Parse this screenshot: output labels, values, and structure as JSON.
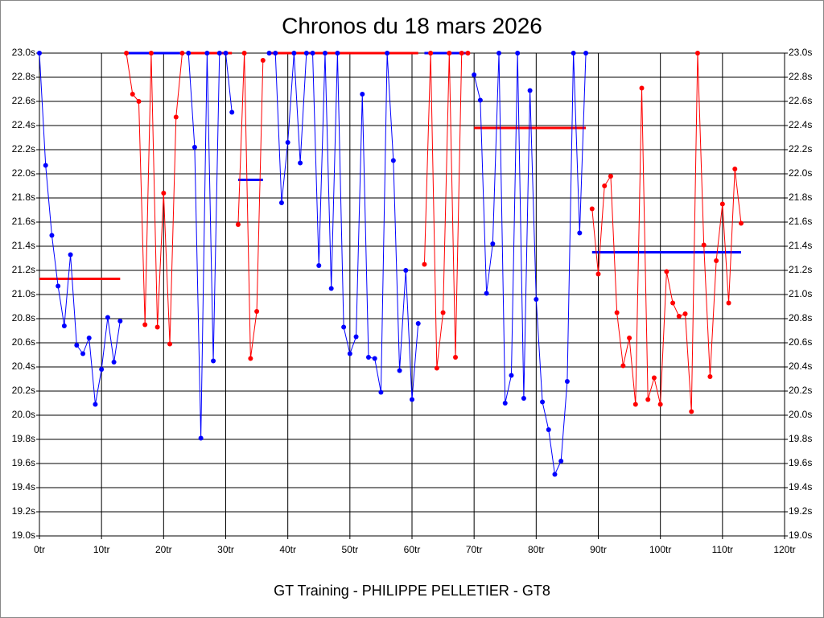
{
  "chart_data": {
    "type": "line",
    "title": "Chronos du 18 mars 2026",
    "footer": "GT Training - PHILIPPE PELLETIER - GT8",
    "xlim": [
      0,
      120
    ],
    "ylim": [
      19,
      23
    ],
    "xticks": [
      {
        "value": 0,
        "label": "0tr"
      },
      {
        "value": 10,
        "label": "10tr"
      },
      {
        "value": 20,
        "label": "20tr"
      },
      {
        "value": 30,
        "label": "30tr"
      },
      {
        "value": 40,
        "label": "40tr"
      },
      {
        "value": 50,
        "label": "50tr"
      },
      {
        "value": 60,
        "label": "60tr"
      },
      {
        "value": 70,
        "label": "70tr"
      },
      {
        "value": 80,
        "label": "80tr"
      },
      {
        "value": 90,
        "label": "90tr"
      },
      {
        "value": 100,
        "label": "100tr"
      },
      {
        "value": 110,
        "label": "110tr"
      },
      {
        "value": 120,
        "label": "120tr"
      }
    ],
    "yticks": [
      {
        "value": 19.0,
        "label": "19.0s"
      },
      {
        "value": 19.2,
        "label": "19.2s"
      },
      {
        "value": 19.4,
        "label": "19.4s"
      },
      {
        "value": 19.6,
        "label": "19.6s"
      },
      {
        "value": 19.8,
        "label": "19.8s"
      },
      {
        "value": 20.0,
        "label": "20.0s"
      },
      {
        "value": 20.2,
        "label": "20.2s"
      },
      {
        "value": 20.4,
        "label": "20.4s"
      },
      {
        "value": 20.6,
        "label": "20.6s"
      },
      {
        "value": 20.8,
        "label": "20.8s"
      },
      {
        "value": 21.0,
        "label": "21.0s"
      },
      {
        "value": 21.2,
        "label": "21.2s"
      },
      {
        "value": 21.4,
        "label": "21.4s"
      },
      {
        "value": 21.6,
        "label": "21.6s"
      },
      {
        "value": 21.8,
        "label": "21.8s"
      },
      {
        "value": 22.0,
        "label": "22.0s"
      },
      {
        "value": 22.2,
        "label": "22.2s"
      },
      {
        "value": 22.4,
        "label": "22.4s"
      },
      {
        "value": 22.6,
        "label": "22.6s"
      },
      {
        "value": 22.8,
        "label": "22.8s"
      },
      {
        "value": 23.0,
        "label": "23.0s"
      }
    ],
    "grid": true,
    "series": [
      {
        "color": "#0000ff",
        "x": [
          0,
          1,
          2,
          3,
          4,
          5,
          6,
          7,
          8,
          9,
          10,
          11,
          12,
          13
        ],
        "values": [
          23.0,
          22.07,
          21.49,
          21.07,
          20.74,
          21.33,
          20.58,
          20.51,
          20.64,
          20.09,
          20.38,
          20.81,
          20.44,
          20.78
        ]
      },
      {
        "color": "#ff0000",
        "x": [
          14,
          15,
          16,
          17,
          18,
          19,
          20,
          21,
          22,
          23
        ],
        "values": [
          23.0,
          22.66,
          22.6,
          20.75,
          23.0,
          20.73,
          21.84,
          20.59,
          22.47,
          23.0
        ]
      },
      {
        "color": "#0000ff",
        "x": [
          24,
          25,
          26,
          27,
          28,
          29,
          30,
          31
        ],
        "values": [
          23.0,
          22.22,
          19.81,
          23.0,
          20.45,
          23.0,
          23.0,
          22.51
        ]
      },
      {
        "color": "#ff0000",
        "x": [
          32,
          33,
          34,
          35,
          36
        ],
        "values": [
          21.58,
          23.0,
          20.47,
          20.86,
          22.94
        ]
      },
      {
        "color": "#0000ff",
        "x": [
          37,
          38,
          39,
          40,
          41,
          42,
          43,
          44,
          45,
          46,
          47,
          48,
          49,
          50,
          51,
          52,
          53,
          54,
          55,
          56,
          57,
          58,
          59,
          60,
          61
        ],
        "values": [
          23.0,
          23.0,
          21.76,
          22.26,
          23.0,
          22.09,
          23.0,
          23.0,
          21.24,
          23.0,
          21.05,
          23.0,
          20.73,
          20.51,
          20.65,
          22.66,
          20.48,
          20.47,
          20.19,
          23.0,
          22.11,
          20.37,
          21.2,
          20.13,
          20.76
        ]
      },
      {
        "color": "#ff0000",
        "x": [
          62,
          63,
          64,
          65,
          66,
          67,
          68,
          69
        ],
        "values": [
          21.25,
          23.0,
          20.39,
          20.85,
          23.0,
          20.48,
          23.0,
          23.0
        ]
      },
      {
        "color": "#0000ff",
        "x": [
          70,
          71,
          72,
          73,
          74,
          75,
          76,
          77,
          78,
          79,
          80,
          81,
          82,
          83,
          84,
          85,
          86,
          87,
          88
        ],
        "values": [
          22.82,
          22.61,
          21.01,
          21.42,
          23.0,
          20.1,
          20.33,
          23.0,
          20.14,
          22.69,
          20.96,
          20.11,
          19.88,
          19.51,
          19.62,
          20.28,
          23.0,
          21.51,
          23.0
        ]
      },
      {
        "color": "#ff0000",
        "x": [
          89,
          90,
          91,
          92,
          93,
          94,
          95,
          96,
          97,
          98,
          99,
          100,
          101,
          102,
          103,
          104,
          105,
          106,
          107,
          108,
          109,
          110,
          111,
          112,
          113
        ],
        "values": [
          21.71,
          21.17,
          21.9,
          21.98,
          20.85,
          20.41,
          20.64,
          20.09,
          22.71,
          20.13,
          20.31,
          20.09,
          21.19,
          20.93,
          20.82,
          20.84,
          20.03,
          23.0,
          21.41,
          20.32,
          21.28,
          21.75,
          20.93,
          22.04,
          21.59
        ]
      }
    ],
    "averages": [
      {
        "color": "#ff0000",
        "x": [
          0,
          13
        ],
        "value": 21.13
      },
      {
        "color": "#0000ff",
        "x": [
          14,
          23
        ],
        "value": 23.0
      },
      {
        "color": "#ff0000",
        "x": [
          24,
          31
        ],
        "value": 23.0
      },
      {
        "color": "#0000ff",
        "x": [
          32,
          36
        ],
        "value": 21.95
      },
      {
        "color": "#ff0000",
        "x": [
          37,
          61
        ],
        "value": 23.0
      },
      {
        "color": "#0000ff",
        "x": [
          62,
          69
        ],
        "value": 23.0
      },
      {
        "color": "#ff0000",
        "x": [
          70,
          88
        ],
        "value": 22.38
      },
      {
        "color": "#0000ff",
        "x": [
          89,
          113
        ],
        "value": 21.35
      }
    ]
  }
}
